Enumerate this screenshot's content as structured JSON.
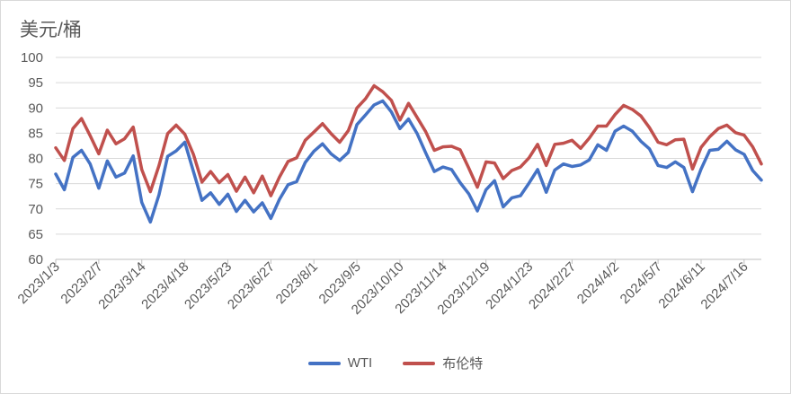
{
  "chart_data": {
    "type": "line",
    "title": "",
    "ylabel": "美元/桶",
    "xlabel": "",
    "ylim": [
      60,
      100
    ],
    "yticks": [
      60,
      65,
      70,
      75,
      80,
      85,
      90,
      95,
      100
    ],
    "grid": true,
    "legend_position": "bottom",
    "x_tick_labels": [
      "2023/1/3",
      "2023/2/7",
      "2023/3/14",
      "2023/4/18",
      "2023/5/23",
      "2023/6/27",
      "2023/8/1",
      "2023/9/5",
      "2023/10/10",
      "2023/11/14",
      "2023/12/19",
      "2024/1/23",
      "2024/2/27",
      "2024/4/2",
      "2024/5/7",
      "2024/6/11",
      "2024/7/16"
    ],
    "x": [
      "2023/1/3",
      "2023/1/10",
      "2023/1/17",
      "2023/1/24",
      "2023/1/31",
      "2023/2/7",
      "2023/2/14",
      "2023/2/21",
      "2023/2/28",
      "2023/3/7",
      "2023/3/14",
      "2023/3/21",
      "2023/3/28",
      "2023/4/4",
      "2023/4/11",
      "2023/4/18",
      "2023/4/25",
      "2023/5/2",
      "2023/5/9",
      "2023/5/16",
      "2023/5/23",
      "2023/5/30",
      "2023/6/6",
      "2023/6/13",
      "2023/6/20",
      "2023/6/27",
      "2023/7/4",
      "2023/7/11",
      "2023/7/18",
      "2023/7/25",
      "2023/8/1",
      "2023/8/8",
      "2023/8/15",
      "2023/8/22",
      "2023/8/29",
      "2023/9/5",
      "2023/9/12",
      "2023/9/19",
      "2023/9/26",
      "2023/10/3",
      "2023/10/10",
      "2023/10/17",
      "2023/10/24",
      "2023/10/31",
      "2023/11/7",
      "2023/11/14",
      "2023/11/21",
      "2023/11/28",
      "2023/12/5",
      "2023/12/12",
      "2023/12/19",
      "2023/12/26",
      "2024/1/2",
      "2024/1/9",
      "2024/1/16",
      "2024/1/23",
      "2024/1/30",
      "2024/2/6",
      "2024/2/13",
      "2024/2/20",
      "2024/2/27",
      "2024/3/5",
      "2024/3/12",
      "2024/3/19",
      "2024/3/26",
      "2024/4/2",
      "2024/4/9",
      "2024/4/16",
      "2024/4/23",
      "2024/4/30",
      "2024/5/7",
      "2024/5/14",
      "2024/5/21",
      "2024/5/28",
      "2024/6/4",
      "2024/6/11",
      "2024/6/18",
      "2024/6/25",
      "2024/7/2",
      "2024/7/9",
      "2024/7/16",
      "2024/7/23",
      "2024/7/30"
    ],
    "series": [
      {
        "name": "WTI",
        "color": "#4472c4",
        "values": [
          76.9,
          73.8,
          80.2,
          81.6,
          78.9,
          74.1,
          79.5,
          76.3,
          77.1,
          80.5,
          71.3,
          67.4,
          72.8,
          80.4,
          81.5,
          83.2,
          77.4,
          71.7,
          73.2,
          70.9,
          72.9,
          69.5,
          71.7,
          69.4,
          71.2,
          68.1,
          71.9,
          74.8,
          75.4,
          79.2,
          81.4,
          82.9,
          80.9,
          79.6,
          81.2,
          86.7,
          88.6,
          90.6,
          91.4,
          89.2,
          85.9,
          87.8,
          84.9,
          81.1,
          77.4,
          78.3,
          77.8,
          75.2,
          73.0,
          69.6,
          73.8,
          75.6,
          70.4,
          72.2,
          72.6,
          75.1,
          77.8,
          73.3,
          77.7,
          78.9,
          78.4,
          78.7,
          79.7,
          82.7,
          81.6,
          85.4,
          86.4,
          85.4,
          83.4,
          81.9,
          78.6,
          78.2,
          79.3,
          78.2,
          73.4,
          77.9,
          81.6,
          81.8,
          83.4,
          81.7,
          80.8,
          77.6,
          75.7
        ]
      },
      {
        "name": "布伦特",
        "color": "#c0504d",
        "values": [
          82.1,
          79.6,
          85.9,
          87.9,
          84.5,
          80.9,
          85.6,
          82.9,
          83.9,
          86.2,
          77.8,
          73.4,
          78.6,
          84.9,
          86.6,
          84.8,
          80.8,
          75.3,
          77.4,
          75.2,
          76.8,
          73.5,
          76.3,
          73.2,
          76.5,
          72.6,
          76.3,
          79.4,
          80.1,
          83.6,
          85.2,
          86.9,
          84.9,
          83.2,
          85.5,
          90.0,
          91.8,
          94.4,
          93.2,
          91.5,
          87.6,
          90.9,
          88.1,
          85.3,
          81.6,
          82.3,
          82.4,
          81.7,
          78.1,
          74.3,
          79.3,
          79.1,
          76.0,
          77.6,
          78.3,
          80.1,
          82.8,
          78.6,
          82.8,
          83.0,
          83.6,
          82.0,
          84.0,
          86.4,
          86.4,
          88.7,
          90.5,
          89.7,
          88.4,
          86.1,
          83.2,
          82.7,
          83.7,
          83.8,
          77.9,
          82.2,
          84.3,
          85.9,
          86.6,
          85.1,
          84.6,
          82.3,
          78.9
        ]
      }
    ]
  }
}
